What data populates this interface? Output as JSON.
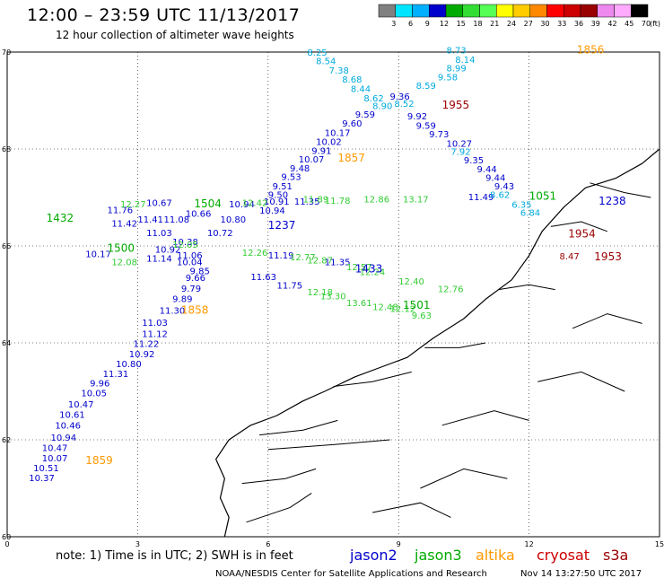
{
  "title": "12:00 – 23:59 UTC 11/13/2017",
  "subtitle": "12 hour collection of altimeter wave heights",
  "legend": {
    "labels": [
      "3",
      "6",
      "9",
      "12",
      "15",
      "18",
      "21",
      "24",
      "27",
      "30",
      "33",
      "36",
      "39",
      "42",
      "45",
      "70"
    ],
    "unit": "(ft)",
    "colors": [
      "#808080",
      "#00e5ff",
      "#00b0ff",
      "#0000cc",
      "#00aa00",
      "#33dd33",
      "#55ff55",
      "#ffff00",
      "#ffcc00",
      "#ff8800",
      "#ff0000",
      "#cc0000",
      "#990000",
      "#ee88ee",
      "#ffaaff",
      "#000000"
    ]
  },
  "axes": {
    "x_ticks": [
      "0",
      "3",
      "6",
      "9",
      "12",
      "15"
    ],
    "y_ticks": [
      "70",
      "68",
      "66",
      "64",
      "62",
      "60"
    ]
  },
  "footer": {
    "note": "note:  1) Time is in UTC;  2) SWH is in feet",
    "credit": "NOAA/NESDIS Center for Satellite Applications and Research",
    "timestamp": "Nov 14 13:27:50 UTC 2017"
  },
  "satellites": [
    {
      "name": "jason2",
      "color": "#0000cc"
    },
    {
      "name": "jason3",
      "color": "#00aa00"
    },
    {
      "name": "altika",
      "color": "#ff9900"
    },
    {
      "name": "cryosat",
      "color": "#cc0000"
    },
    {
      "name": "s3a",
      "color": "#990000"
    }
  ],
  "tracks": [
    {
      "id": "A",
      "color": "#00aadd",
      "label": "1856",
      "label_color": "#ff9900",
      "label_lon": 13.1,
      "label_lat": 69.97,
      "labels": [
        "8.25",
        "8.54",
        "7.38",
        "8.68",
        "8.44",
        "8.62",
        "8.90"
      ],
      "points": [
        [
          6.9,
          69.93
        ],
        [
          7.1,
          69.75
        ],
        [
          7.4,
          69.56
        ],
        [
          7.7,
          69.37
        ],
        [
          7.9,
          69.18
        ],
        [
          8.2,
          68.98
        ],
        [
          8.4,
          68.82
        ]
      ]
    },
    {
      "id": "A2",
      "color": "#00aadd",
      "labels": [
        "8.73",
        "8.14",
        "8.99",
        "9.58",
        "8.59",
        "8.52"
      ],
      "points": [
        [
          10.1,
          69.97
        ],
        [
          10.3,
          69.78
        ],
        [
          10.1,
          69.6
        ],
        [
          9.9,
          69.42
        ],
        [
          9.4,
          69.24
        ],
        [
          8.9,
          68.87
        ]
      ]
    },
    {
      "id": "B",
      "color": "#0000cc",
      "label": "1955",
      "label_color": "#990000",
      "label_lon": 10.0,
      "label_lat": 68.83,
      "labels": [
        "9.36",
        "9.59",
        "9.60",
        "10.17",
        "10.02",
        "9.91",
        "10.07",
        "9.48",
        "9.53",
        "9.51",
        "9.50",
        "10.91",
        "10.94",
        "11.35"
      ],
      "points": [
        [
          8.8,
          69.02
        ],
        [
          8.0,
          68.65
        ],
        [
          7.7,
          68.46
        ],
        [
          7.3,
          68.27
        ],
        [
          7.1,
          68.08
        ],
        [
          7.0,
          67.9
        ],
        [
          6.7,
          67.72
        ],
        [
          6.5,
          67.54
        ],
        [
          6.3,
          67.36
        ],
        [
          6.1,
          67.17
        ],
        [
          6.0,
          66.99
        ],
        [
          5.9,
          66.85
        ],
        [
          5.8,
          66.67
        ],
        [
          6.6,
          66.85
        ]
      ]
    },
    {
      "id": "B2",
      "color": "#0000cc",
      "labels": [
        "9.92",
        "9.59",
        "9.73",
        "10.27",
        "9.35",
        "9.44",
        "9.44",
        "9.43",
        "11.49"
      ],
      "points": [
        [
          9.2,
          68.61
        ],
        [
          9.4,
          68.42
        ],
        [
          9.7,
          68.24
        ],
        [
          10.1,
          68.05
        ],
        [
          10.5,
          67.7
        ],
        [
          10.8,
          67.52
        ],
        [
          11.0,
          67.34
        ],
        [
          11.2,
          67.17
        ],
        [
          10.6,
          66.94
        ]
      ]
    },
    {
      "id": "C",
      "color": "#00aadd",
      "labels": [
        "7.92",
        "8.62",
        "6.35",
        "6.84"
      ],
      "points": [
        [
          10.2,
          67.88
        ],
        [
          11.1,
          66.99
        ],
        [
          11.6,
          66.79
        ],
        [
          11.8,
          66.62
        ]
      ]
    },
    {
      "id": "D",
      "color": "#0000cc",
      "label": "1857",
      "label_color": "#ff9900",
      "label_lon": 7.6,
      "label_lat": 67.74,
      "labels": [],
      "points": []
    },
    {
      "id": "E",
      "color": "#33cc33",
      "labels": [
        "11.89",
        "11.78",
        "12.86",
        "13.17"
      ],
      "points": [
        [
          6.8,
          66.9
        ],
        [
          7.3,
          66.87
        ],
        [
          8.2,
          66.9
        ],
        [
          9.1,
          66.9
        ]
      ]
    },
    {
      "id": "F",
      "color": "#0000cc",
      "label": "1238",
      "label_color": "#0000cc",
      "label_lon": 13.6,
      "label_lat": 66.85,
      "labels": [],
      "points": []
    },
    {
      "id": "G",
      "color": "#0000cc",
      "label": "1954",
      "label_color": "#990000",
      "label_lon": 12.9,
      "label_lat": 66.18,
      "labels": [],
      "points": []
    },
    {
      "id": "H",
      "color": "#990000",
      "label": "1953",
      "label_color": "#990000",
      "label_lon": 13.5,
      "label_lat": 65.7,
      "labels": [
        "8.47"
      ],
      "points": [
        [
          12.7,
          65.72
        ]
      ]
    },
    {
      "id": "I",
      "color": "#0000cc",
      "labels": [
        "11.76",
        "11.41",
        "11.42",
        "11.03",
        "10.67",
        "11.08",
        "10.66",
        "10.94",
        "10.80",
        "10.72",
        "10.38",
        "10.92",
        "10.17",
        "11.14",
        "10.04",
        "9.85",
        "9.66",
        "9.79",
        "9.89",
        "11.30",
        "11.19",
        "11.35",
        "11.63",
        "11.75",
        "11.06"
      ],
      "points": [
        [
          2.3,
          66.68
        ],
        [
          3.0,
          66.48
        ],
        [
          2.4,
          66.4
        ],
        [
          3.2,
          66.2
        ],
        [
          3.2,
          66.82
        ],
        [
          3.6,
          66.48
        ],
        [
          4.1,
          66.6
        ],
        [
          5.1,
          66.8
        ],
        [
          4.9,
          66.48
        ],
        [
          4.6,
          66.2
        ],
        [
          3.8,
          66.02
        ],
        [
          3.4,
          65.86
        ],
        [
          1.8,
          65.77
        ],
        [
          3.2,
          65.68
        ],
        [
          3.9,
          65.6
        ],
        [
          4.2,
          65.42
        ],
        [
          4.1,
          65.28
        ],
        [
          4.0,
          65.06
        ],
        [
          3.8,
          64.84
        ],
        [
          3.5,
          64.6
        ],
        [
          6.0,
          65.74
        ],
        [
          7.3,
          65.6
        ],
        [
          5.6,
          65.3
        ],
        [
          6.2,
          65.12
        ],
        [
          3.9,
          65.74
        ]
      ]
    },
    {
      "id": "J",
      "color": "#33cc33",
      "labels": [
        "12.27",
        "12.42",
        "12.05",
        "12.08",
        "12.26",
        "12.77",
        "12.87",
        "12.57",
        "12.24",
        "12.40",
        "12.76",
        "12.18",
        "13.30",
        "13.61",
        "12.48",
        "12.12"
      ],
      "points": [
        [
          2.6,
          66.8
        ],
        [
          5.4,
          66.82
        ],
        [
          3.8,
          65.96
        ],
        [
          2.4,
          65.6
        ],
        [
          5.4,
          65.8
        ],
        [
          6.5,
          65.7
        ],
        [
          6.9,
          65.64
        ],
        [
          7.8,
          65.5
        ],
        [
          8.1,
          65.4
        ],
        [
          9.0,
          65.2
        ],
        [
          9.9,
          65.05
        ],
        [
          6.9,
          64.98
        ],
        [
          7.2,
          64.9
        ],
        [
          7.8,
          64.76
        ],
        [
          8.4,
          64.68
        ],
        [
          8.8,
          64.64
        ]
      ]
    },
    {
      "id": "K",
      "color": "#33cc33",
      "label": "1500",
      "label_color": "#00aa00",
      "label_lon": 2.3,
      "label_lat": 65.88,
      "labels": [],
      "points": []
    },
    {
      "id": "L",
      "color": "#0000cc",
      "label": "1433",
      "label_color": "#0000cc",
      "label_lon": 8.0,
      "label_lat": 65.45,
      "labels": [],
      "points": []
    },
    {
      "id": "M",
      "color": "#33cc33",
      "label": "1501",
      "label_color": "#00aa00",
      "label_lon": 9.1,
      "label_lat": 64.7,
      "labels": [
        "9.63"
      ],
      "points": [
        [
          9.3,
          64.5
        ]
      ]
    },
    {
      "id": "N",
      "color": "#0000cc",
      "label": "1858",
      "label_color": "#ff9900",
      "label_lon": 4.0,
      "label_lat": 64.6,
      "labels": [
        "11.03",
        "11.12",
        "11.22",
        "10.92",
        "10.80",
        "11.31",
        "9.96",
        "10.05",
        "10.47",
        "10.61",
        "10.46",
        "10.94",
        "10.47",
        "10.07",
        "10.51",
        "10.37"
      ],
      "points": [
        [
          3.1,
          64.35
        ],
        [
          3.1,
          64.12
        ],
        [
          2.9,
          63.92
        ],
        [
          2.8,
          63.7
        ],
        [
          2.5,
          63.5
        ],
        [
          2.2,
          63.3
        ],
        [
          1.9,
          63.1
        ],
        [
          1.7,
          62.9
        ],
        [
          1.4,
          62.67
        ],
        [
          1.2,
          62.45
        ],
        [
          1.1,
          62.23
        ],
        [
          1.0,
          61.98
        ],
        [
          0.8,
          61.77
        ],
        [
          0.8,
          61.56
        ],
        [
          0.6,
          61.35
        ],
        [
          0.5,
          61.15
        ]
      ]
    },
    {
      "id": "O",
      "color": "#0000cc",
      "label": "1859",
      "label_color": "#ff9900",
      "label_lon": 1.8,
      "label_lat": 61.5,
      "labels": [],
      "points": []
    },
    {
      "id": "P",
      "color": "#0000cc",
      "label": "1237",
      "label_color": "#0000cc",
      "label_lon": 6.0,
      "label_lat": 66.35,
      "labels": [],
      "points": []
    },
    {
      "id": "Q",
      "color": "#33cc33",
      "label": "1504",
      "label_color": "#00aa00",
      "label_lon": 4.3,
      "label_lat": 66.8,
      "labels": [],
      "points": []
    },
    {
      "id": "R",
      "color": "#33cc33",
      "label": "1432",
      "label_color": "#00aa00",
      "label_lon": 0.9,
      "label_lat": 66.5,
      "labels": [],
      "points": []
    },
    {
      "id": "S",
      "color": "#0000cc",
      "label": "1051",
      "label_color": "#00aa00",
      "label_lon": 12.0,
      "label_lat": 66.95,
      "labels": [],
      "points": []
    }
  ]
}
